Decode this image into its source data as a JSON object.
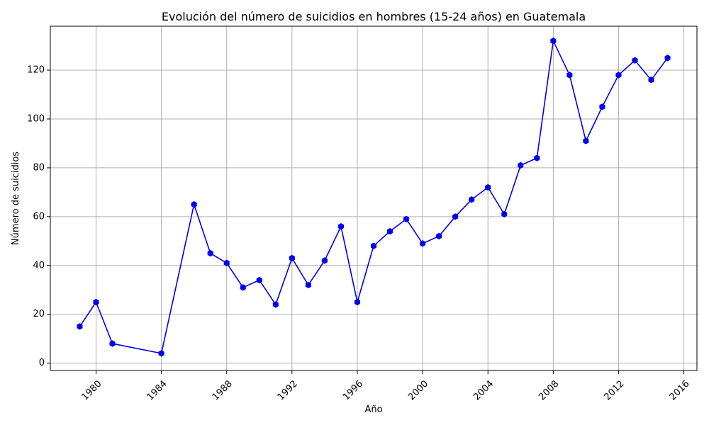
{
  "chart_data": {
    "type": "line",
    "title": "Evolución del número de suicidios en hombres (15-24 años) en Guatemala",
    "xlabel": "Año",
    "ylabel": "Número de suicidios",
    "x": [
      1979,
      1980,
      1981,
      1984,
      1986,
      1987,
      1988,
      1989,
      1990,
      1991,
      1992,
      1993,
      1994,
      1995,
      1996,
      1997,
      1998,
      1999,
      2000,
      2001,
      2002,
      2003,
      2004,
      2005,
      2006,
      2007,
      2008,
      2009,
      2010,
      2011,
      2012,
      2013,
      2014,
      2015
    ],
    "series": [
      {
        "values": [
          15,
          25,
          8,
          4,
          65,
          45,
          41,
          31,
          34,
          24,
          43,
          32,
          42,
          56,
          25,
          48,
          54,
          59,
          49,
          52,
          60,
          67,
          72,
          61,
          81,
          84,
          132,
          118,
          91,
          105,
          118,
          124,
          116,
          125
        ],
        "color": "#0000ee",
        "marker": "hexagon"
      }
    ],
    "xticks": [
      "1980",
      "1984",
      "1988",
      "1992",
      "1996",
      "2000",
      "2004",
      "2008",
      "2012",
      "2016"
    ],
    "yticks": [
      "0",
      "20",
      "40",
      "60",
      "80",
      "100",
      "120"
    ],
    "xlim": [
      1977.2,
      2016.8
    ],
    "ylim": [
      -3,
      138
    ],
    "grid": true,
    "xtick_rotation": "45 degrees"
  }
}
